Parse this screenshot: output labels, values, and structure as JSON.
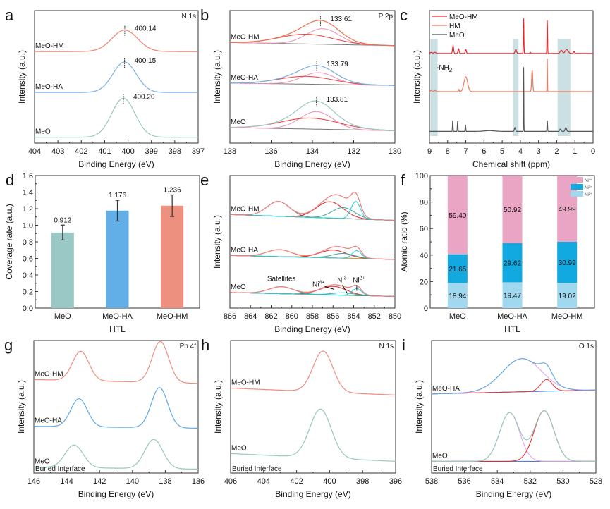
{
  "figure": {
    "panels": [
      "a",
      "b",
      "c",
      "d",
      "e",
      "f",
      "g",
      "h",
      "i"
    ]
  },
  "chart_data": [
    {
      "id": "a",
      "type": "line",
      "panel_label": "a",
      "corner_label": "N 1s",
      "xlabel": "Binding Energy (eV)",
      "ylabel": "Intensity (a.u.)",
      "xlim": [
        404,
        397
      ],
      "xticks": [
        404,
        403,
        402,
        401,
        400,
        399,
        398,
        397
      ],
      "ylim": [
        0,
        3.4
      ],
      "series": [
        {
          "name": "MeO-HM",
          "color": "#f08070",
          "offset": 2.35,
          "peaks": [
            {
              "center": 400.14,
              "height": 0.55,
              "width": 0.55
            }
          ],
          "peak_label": "400.14"
        },
        {
          "name": "MeO-HA",
          "color": "#78aee6",
          "offset": 1.3,
          "peaks": [
            {
              "center": 400.15,
              "height": 0.78,
              "width": 0.5
            }
          ],
          "peak_label": "400.15"
        },
        {
          "name": "MeO",
          "color": "#98c8c0",
          "offset": 0.15,
          "peaks": [
            {
              "center": 400.2,
              "height": 1.0,
              "width": 0.5
            }
          ],
          "peak_label": "400.20"
        }
      ]
    },
    {
      "id": "b",
      "type": "line",
      "panel_label": "b",
      "corner_label": "P 2p",
      "xlabel": "Binding Energy (eV)",
      "ylabel": "Intensity (a.u.)",
      "xlim": [
        138,
        130
      ],
      "xticks": [
        138,
        136,
        134,
        132,
        130
      ],
      "ylim": [
        0,
        3.4
      ],
      "series": [
        {
          "name": "MeO-HM",
          "color": "#f0704a",
          "offset": 2.5,
          "peaks": [
            {
              "center": 133.5,
              "height": 0.4,
              "width": 0.8,
              "color": "#f08cb4"
            },
            {
              "center": 134.3,
              "height": 0.25,
              "width": 1.3,
              "color": "#e83c3c"
            }
          ],
          "background_drop": 0.08,
          "peak_label": "133.61",
          "marker_x": 133.61
        },
        {
          "name": "MeO-HA",
          "color": "#78aee6",
          "offset": 1.48,
          "peaks": [
            {
              "center": 133.7,
              "height": 0.3,
              "width": 0.8,
              "color": "#f08cb4"
            },
            {
              "center": 134.3,
              "height": 0.2,
              "width": 1.3,
              "color": "#e83c3c"
            }
          ],
          "background_drop": 0.06,
          "peak_label": "133.79",
          "marker_x": 133.79
        },
        {
          "name": "MeO",
          "color": "#98c8c0",
          "offset": 0.32,
          "peaks": [
            {
              "center": 133.8,
              "height": 0.45,
              "width": 0.8,
              "color": "#f08cb4"
            },
            {
              "center": 134.1,
              "height": 0.28,
              "width": 1.4,
              "color": "#e83c3c"
            }
          ],
          "background_drop": 0.08,
          "peak_label": "133.81",
          "marker_x": 133.81
        }
      ]
    },
    {
      "id": "c",
      "type": "line",
      "panel_label": "c",
      "xlabel": "Chemical shift (ppm)",
      "ylabel": "Intensity (a.u.)",
      "xlim": [
        9,
        0
      ],
      "xticks": [
        9,
        8,
        7,
        6,
        5,
        4,
        3,
        2,
        1,
        0
      ],
      "ylim": [
        0,
        3.4
      ],
      "legend": {
        "position": "top-left",
        "entries": [
          {
            "name": "MeO-HM",
            "color": "#e8262a"
          },
          {
            "name": "HM",
            "color": "#f07860"
          },
          {
            "name": "MeO",
            "color": "#555555"
          }
        ]
      },
      "annotation": "-NH2",
      "highlight_bands": [
        [
          8.95,
          8.55
        ],
        [
          4.4,
          4.1
        ],
        [
          1.95,
          1.25
        ]
      ],
      "series": [
        {
          "name": "MeO-HM",
          "color": "#e8262a",
          "offset": 2.3,
          "peaks": [
            {
              "center": 8.9,
              "height": 0.03,
              "width": 0.05
            },
            {
              "center": 8.7,
              "height": 0.03,
              "width": 0.05
            },
            {
              "center": 7.7,
              "height": 0.2,
              "width": 0.03
            },
            {
              "center": 7.4,
              "height": 0.12,
              "width": 0.03
            },
            {
              "center": 7.0,
              "height": 0.1,
              "width": 0.03
            },
            {
              "center": 4.25,
              "height": 0.1,
              "width": 0.04
            },
            {
              "center": 3.82,
              "height": 0.9,
              "width": 0.015
            },
            {
              "center": 3.45,
              "height": 0.03,
              "width": 0.02
            },
            {
              "center": 2.52,
              "height": 0.85,
              "width": 0.015
            },
            {
              "center": 1.75,
              "height": 0.08,
              "width": 0.06
            },
            {
              "center": 1.45,
              "height": 0.1,
              "width": 0.08
            },
            {
              "center": 1.05,
              "height": 0.05,
              "width": 0.03
            }
          ]
        },
        {
          "name": "HM",
          "color": "#f07860",
          "offset": 1.32,
          "peaks": [
            {
              "center": 8.9,
              "height": 0.03,
              "width": 0.05
            },
            {
              "center": 8.7,
              "height": 0.03,
              "width": 0.05
            },
            {
              "center": 7.38,
              "height": 0.06,
              "width": 0.02
            },
            {
              "center": 7.0,
              "height": 0.38,
              "width": 0.1
            },
            {
              "center": 3.35,
              "height": 0.55,
              "width": 0.03
            },
            {
              "center": 2.52,
              "height": 0.85,
              "width": 0.01
            }
          ]
        },
        {
          "name": "MeO",
          "color": "#555555",
          "offset": 0.3,
          "peaks": [
            {
              "center": 7.72,
              "height": 0.28,
              "width": 0.015
            },
            {
              "center": 7.45,
              "height": 0.26,
              "width": 0.015
            },
            {
              "center": 7.02,
              "height": 0.17,
              "width": 0.015
            },
            {
              "center": 5.7,
              "height": 0.02,
              "width": 0.3
            },
            {
              "center": 4.3,
              "height": 0.1,
              "width": 0.03
            },
            {
              "center": 3.82,
              "height": 1.65,
              "width": 0.01
            },
            {
              "center": 2.52,
              "height": 0.28,
              "width": 0.015
            },
            {
              "center": 1.8,
              "height": 0.06,
              "width": 0.04
            },
            {
              "center": 1.5,
              "height": 0.1,
              "width": 0.04
            }
          ]
        }
      ]
    },
    {
      "id": "d",
      "type": "bar",
      "panel_label": "d",
      "xlabel": "HTL",
      "ylabel": "Coverage rate (a.u.)",
      "categories": [
        "MeO",
        "MeO-HA",
        "MeO-HM"
      ],
      "values": [
        0.912,
        1.176,
        1.236
      ],
      "value_labels": [
        "0.912",
        "1.176",
        "1.236"
      ],
      "errors": [
        0.09,
        0.125,
        0.13
      ],
      "colors": [
        "#9ac8c4",
        "#62aee6",
        "#ee9080"
      ],
      "ylim": [
        0,
        1.6
      ],
      "yticks": [
        0.0,
        0.2,
        0.4,
        0.6,
        0.8,
        1.0,
        1.2,
        1.4,
        1.6
      ],
      "ytick_labels": [
        "0.0",
        "0.2",
        "0.4",
        "0.6",
        "0.8",
        "1.0",
        "1.2",
        "1.4",
        "1.6"
      ]
    },
    {
      "id": "e",
      "type": "line",
      "panel_label": "e",
      "xlabel": "Binding Energy (eV)",
      "ylabel": "Intensity (a.u.)",
      "xlim": [
        866,
        850
      ],
      "xticks": [
        866,
        864,
        862,
        860,
        858,
        856,
        854,
        852,
        850
      ],
      "ylim": [
        0,
        3.4
      ],
      "annotations": [
        "Satellites",
        "Ni4+",
        "Ni3+",
        "Ni2+"
      ],
      "series": [
        {
          "name": "MeO-HM",
          "color": "#f07a7a",
          "offset": 2.25,
          "peaks": [
            {
              "center": 861.3,
              "height": 0.38,
              "width": 1.1,
              "color": "#7a8a8a"
            },
            {
              "center": 856.3,
              "height": 0.42,
              "width": 1.3,
              "color": "#e82020"
            },
            {
              "center": 855.0,
              "height": 0.28,
              "width": 1.1,
              "color": "#3aa4a0"
            },
            {
              "center": 853.8,
              "height": 0.45,
              "width": 0.45,
              "color": "#20d0d8"
            }
          ],
          "background_drop": 0.15
        },
        {
          "name": "MeO-HA",
          "color": "#f07a7a",
          "offset": 1.25,
          "peaks": [
            {
              "center": 861.2,
              "height": 0.18,
              "width": 1.2,
              "color": "#e8a020"
            },
            {
              "center": 856.0,
              "height": 0.2,
              "width": 1.3,
              "color": "#e82020"
            },
            {
              "center": 855.0,
              "height": 0.12,
              "width": 1.1,
              "color": "#3aa4a0"
            },
            {
              "center": 853.7,
              "height": 0.2,
              "width": 0.45,
              "color": "#20d0d8"
            }
          ],
          "background_drop": 0.1
        },
        {
          "name": "MeO",
          "color": "#f07a7a",
          "offset": 0.3,
          "peaks": [
            {
              "center": 861.0,
              "height": 0.18,
              "width": 1.2,
              "color": "#30a060"
            },
            {
              "center": 856.0,
              "height": 0.22,
              "width": 1.3,
              "color": "#e82020"
            },
            {
              "center": 855.0,
              "height": 0.06,
              "width": 1.1,
              "color": "#3aa4a0"
            },
            {
              "center": 853.7,
              "height": 0.18,
              "width": 0.45,
              "color": "#20d0d8"
            }
          ],
          "background_drop": 0.1
        }
      ]
    },
    {
      "id": "f",
      "type": "bar",
      "stacked": true,
      "panel_label": "f",
      "xlabel": "HTL",
      "ylabel": "Atomic ratio (%)",
      "categories": [
        "MeO",
        "MeO-HA",
        "MeO-HM"
      ],
      "ylim": [
        0,
        100
      ],
      "yticks": [
        0,
        20,
        40,
        60,
        80,
        100
      ],
      "legend": {
        "position": "top-right"
      },
      "series": [
        {
          "name": "Ni2+",
          "color": "#a0d8f0",
          "values": [
            18.94,
            19.47,
            19.02
          ],
          "value_labels": [
            "18.94",
            "19.47",
            "19.02"
          ]
        },
        {
          "name": "Ni3+",
          "color": "#12a8e0",
          "values": [
            21.65,
            29.62,
            30.99
          ],
          "value_labels": [
            "21.65",
            "29.62",
            "30.99"
          ]
        },
        {
          "name": "Ni4+",
          "color": "#eaa4c4",
          "values": [
            59.4,
            50.92,
            49.99
          ],
          "value_labels": [
            "59.40",
            "50.92",
            "49.99"
          ]
        }
      ],
      "legend_order": [
        "Ni4+",
        "Ni3+",
        "Ni2+"
      ]
    },
    {
      "id": "g",
      "type": "line",
      "panel_label": "g",
      "corner_label": "Pb 4f",
      "bottom_label": "Buried Interface",
      "xlabel": "Binding Energy (eV)",
      "ylabel": "Intensity (a.u.)",
      "xlim": [
        146,
        136
      ],
      "xticks": [
        146,
        144,
        142,
        140,
        138,
        136
      ],
      "ylim": [
        0,
        3.4
      ],
      "series": [
        {
          "name": "MeO-HM",
          "color": "#f08c80",
          "offset": 2.3,
          "peaks": [
            {
              "center": 143.15,
              "height": 0.75,
              "width": 0.5
            },
            {
              "center": 138.3,
              "height": 1.05,
              "width": 0.5
            }
          ],
          "background_drop": 0.1
        },
        {
          "name": "MeO-HA",
          "color": "#5ea8e8",
          "offset": 1.15,
          "peaks": [
            {
              "center": 143.25,
              "height": 0.72,
              "width": 0.5
            },
            {
              "center": 138.35,
              "height": 1.03,
              "width": 0.5
            }
          ],
          "background_drop": 0.05
        },
        {
          "name": "MeO",
          "color": "#98c8c0",
          "offset": 0.1,
          "peaks": [
            {
              "center": 143.55,
              "height": 0.58,
              "width": 0.55
            },
            {
              "center": 138.7,
              "height": 0.75,
              "width": 0.55
            }
          ],
          "background_drop": 0.05
        }
      ]
    },
    {
      "id": "h",
      "type": "line",
      "panel_label": "h",
      "corner_label": "N 1s",
      "bottom_label": "Buried Interface",
      "xlabel": "Binding Energy (eV)",
      "ylabel": "Intensity (a.u.)",
      "xlim": [
        406,
        396
      ],
      "xticks": [
        406,
        404,
        402,
        400,
        398,
        396
      ],
      "ylim": [
        0,
        3.4
      ],
      "series": [
        {
          "name": "MeO-HM",
          "color": "#f08c80",
          "offset": 2.0,
          "peaks": [
            {
              "center": 400.4,
              "height": 1.05,
              "width": 0.6
            }
          ],
          "background_drop": 0.18
        },
        {
          "name": "MeO",
          "color": "#98c8c0",
          "offset": 0.3,
          "peaks": [
            {
              "center": 400.55,
              "height": 1.25,
              "width": 0.65
            }
          ],
          "background_drop": 0.2
        }
      ]
    },
    {
      "id": "i",
      "type": "line",
      "panel_label": "i",
      "corner_label": "O 1s",
      "bottom_label": "Buried Interface",
      "xlabel": "Binding Energy (eV)",
      "ylabel": "Intensity (a.u.)",
      "xlim": [
        538,
        528
      ],
      "xticks": [
        538,
        536,
        534,
        532,
        530,
        528
      ],
      "ylim": [
        0,
        3.4
      ],
      "series": [
        {
          "name": "MeO-HA",
          "color": "#68a8e8",
          "offset": 2.13,
          "baseline_color": "#2a70d8",
          "peaks": [
            {
              "center": 532.5,
              "height": 0.85,
              "width": 1.2,
              "color": "#e89ae8"
            },
            {
              "center": 531.0,
              "height": 0.3,
              "width": 0.35,
              "color": "#e83030"
            }
          ],
          "background_drop": -0.1
        },
        {
          "name": "MeO",
          "color": "#98c8c0",
          "offset": 0.3,
          "baseline_color": "#2a70d8",
          "peaks": [
            {
              "center": 533.25,
              "height": 1.25,
              "width": 0.6,
              "color": "#e89ae8"
            },
            {
              "center": 531.15,
              "height": 1.3,
              "width": 0.6,
              "color": "#e82020"
            }
          ],
          "background_drop": 0
        }
      ]
    }
  ]
}
